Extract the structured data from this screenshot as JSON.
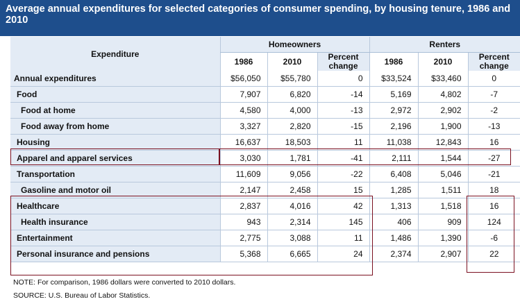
{
  "title": "Average annual expenditures for selected categories of consumer spending, by housing tenure, 1986 and 2010",
  "header": {
    "expenditure": "Expenditure",
    "homeowners": "Homeowners",
    "renters": "Renters",
    "y1986": "1986",
    "y2010": "2010",
    "pct": "Percent change"
  },
  "rows": [
    {
      "label": "Annual expenditures",
      "h86": "$56,050",
      "h10": "$55,780",
      "hp": "0",
      "r86": "$33,524",
      "r10": "$33,460",
      "rp": "0"
    },
    {
      "label": "Food",
      "h86": "7,907",
      "h10": "6,820",
      "hp": "-14",
      "r86": "5,169",
      "r10": "4,802",
      "rp": "-7"
    },
    {
      "label": "Food at home",
      "h86": "4,580",
      "h10": "4,000",
      "hp": "-13",
      "r86": "2,972",
      "r10": "2,902",
      "rp": "-2"
    },
    {
      "label": "Food away from home",
      "h86": "3,327",
      "h10": "2,820",
      "hp": "-15",
      "r86": "2,196",
      "r10": "1,900",
      "rp": "-13"
    },
    {
      "label": "Housing",
      "h86": "16,637",
      "h10": "18,503",
      "hp": "11",
      "r86": "11,038",
      "r10": "12,843",
      "rp": "16"
    },
    {
      "label": "Apparel and apparel services",
      "h86": "3,030",
      "h10": "1,781",
      "hp": "-41",
      "r86": "2,111",
      "r10": "1,544",
      "rp": "-27"
    },
    {
      "label": "Transportation",
      "h86": "11,609",
      "h10": "9,056",
      "hp": "-22",
      "r86": "6,408",
      "r10": "5,046",
      "rp": "-21"
    },
    {
      "label": "Gasoline and motor oil",
      "h86": "2,147",
      "h10": "2,458",
      "hp": "15",
      "r86": "1,285",
      "r10": "1,511",
      "rp": "18"
    },
    {
      "label": "Healthcare",
      "h86": "2,837",
      "h10": "4,016",
      "hp": "42",
      "r86": "1,313",
      "r10": "1,518",
      "rp": "16"
    },
    {
      "label": "Health insurance",
      "h86": "943",
      "h10": "2,314",
      "hp": "145",
      "r86": "406",
      "r10": "909",
      "rp": "124"
    },
    {
      "label": "Entertainment",
      "h86": "2,775",
      "h10": "3,088",
      "hp": "11",
      "r86": "1,486",
      "r10": "1,390",
      "rp": "-6"
    },
    {
      "label": "Personal insurance and pensions",
      "h86": "5,368",
      "h10": "6,665",
      "hp": "24",
      "r86": "2,374",
      "r10": "2,907",
      "rp": "22"
    }
  ],
  "note": "NOTE: For comparison, 1986 dollars were converted to 2010 dollars.",
  "source": "SOURCE: U.S. Bureau of Labor Statistics.",
  "colors": {
    "title_bg": "#1e4e8c",
    "header_bg": "#e3ebf5",
    "highlight": "#7a1020"
  }
}
